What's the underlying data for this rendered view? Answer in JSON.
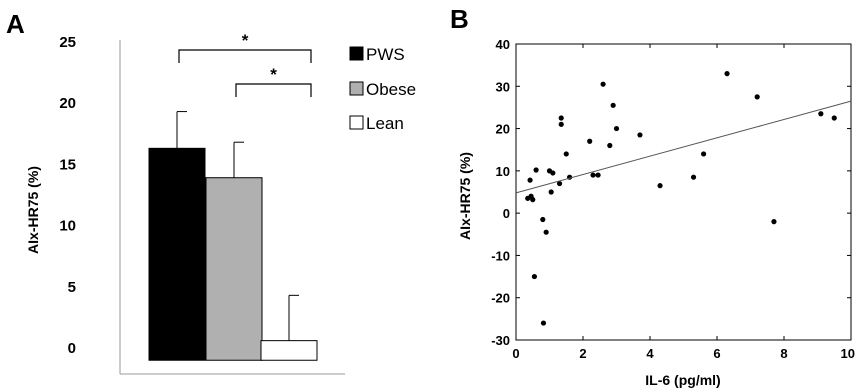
{
  "chart_data": [
    {
      "panel_label": "A",
      "type": "bar",
      "categories": [
        "PWS",
        "Obese",
        "Lean"
      ],
      "values": [
        16.3,
        13.9,
        0.6
      ],
      "error_upper": [
        19.3,
        16.8,
        4.3
      ],
      "colors": [
        "#000000",
        "#b0b0b0",
        "#ffffff"
      ],
      "ylabel": "AIx-HR75 (%)",
      "ylim": [
        -1,
        25
      ],
      "yticks": [
        "25",
        "20",
        "15",
        "10",
        "5",
        "0"
      ],
      "ytick_values": [
        25,
        20,
        15,
        10,
        5,
        0
      ],
      "legend": [
        "PWS",
        "Obese",
        "Lean"
      ],
      "legend_position": "right",
      "significance": [
        {
          "from": "PWS",
          "to": "Lean",
          "label": "*"
        },
        {
          "from": "Obese",
          "to": "Lean",
          "label": "*"
        }
      ]
    },
    {
      "panel_label": "B",
      "type": "scatter",
      "xlabel": "IL-6 (pg/ml)",
      "ylabel": "AIx-HR75 (%)",
      "xlim": [
        0,
        10
      ],
      "ylim": [
        -30,
        40
      ],
      "xticks": [
        "0",
        "2",
        "4",
        "6",
        "8",
        "10"
      ],
      "xtick_values": [
        0,
        2,
        4,
        6,
        8,
        10
      ],
      "yticks": [
        "40",
        "30",
        "20",
        "10",
        "0",
        "-10",
        "-20",
        "-30"
      ],
      "ytick_values": [
        40,
        30,
        20,
        10,
        0,
        -10,
        -20,
        -30
      ],
      "points": [
        [
          0.35,
          3.5
        ],
        [
          0.42,
          7.8
        ],
        [
          0.45,
          4.0
        ],
        [
          0.5,
          3.2
        ],
        [
          0.55,
          -15.0
        ],
        [
          0.6,
          10.2
        ],
        [
          0.8,
          -1.5
        ],
        [
          0.82,
          -26.0
        ],
        [
          0.9,
          -4.5
        ],
        [
          1.0,
          10.0
        ],
        [
          1.05,
          5.0
        ],
        [
          1.1,
          9.5
        ],
        [
          1.3,
          7.0
        ],
        [
          1.35,
          21.0
        ],
        [
          1.35,
          22.5
        ],
        [
          1.5,
          14.0
        ],
        [
          1.6,
          8.5
        ],
        [
          2.2,
          17.0
        ],
        [
          2.3,
          9.0
        ],
        [
          2.45,
          9.0
        ],
        [
          2.6,
          30.5
        ],
        [
          2.8,
          16.0
        ],
        [
          2.9,
          25.5
        ],
        [
          3.0,
          20.0
        ],
        [
          3.7,
          18.5
        ],
        [
          4.3,
          6.5
        ],
        [
          5.3,
          8.5
        ],
        [
          5.6,
          14.0
        ],
        [
          6.3,
          33.0
        ],
        [
          7.2,
          27.5
        ],
        [
          7.7,
          -2.0
        ],
        [
          9.1,
          23.5
        ],
        [
          9.5,
          22.5
        ]
      ],
      "regression_line": {
        "x": [
          0,
          10
        ],
        "y": [
          4.8,
          26.5
        ]
      }
    }
  ]
}
